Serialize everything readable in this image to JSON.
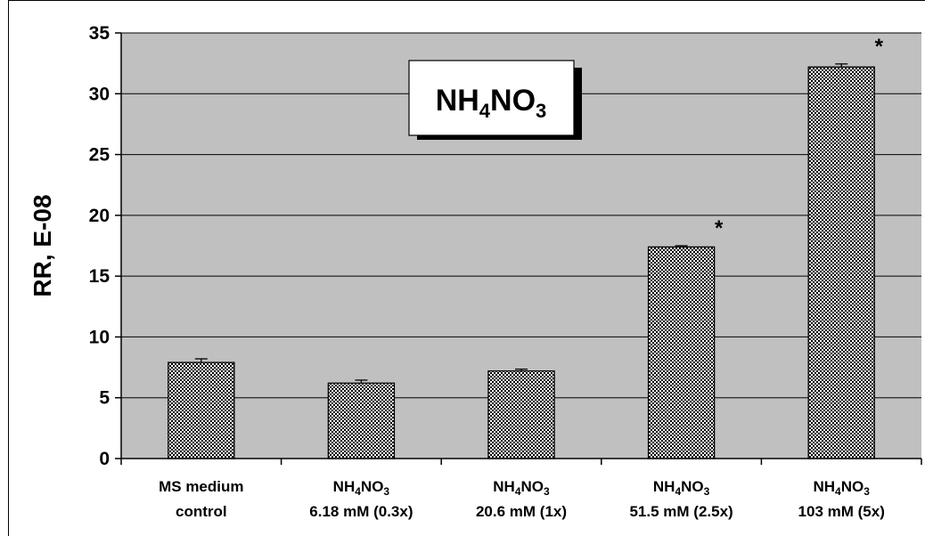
{
  "chart_data": {
    "type": "bar",
    "title": {
      "base": "NH",
      "sub1": "4",
      "mid": "NO",
      "sub2": "3"
    },
    "ylabel": "RR, E-08",
    "xlabel": "",
    "ylim": [
      0,
      35
    ],
    "yticks": [
      0,
      5,
      10,
      15,
      20,
      25,
      30,
      35
    ],
    "grid": true,
    "categories": [
      {
        "line1": {
          "text": "MS medium"
        },
        "line2": "control"
      },
      {
        "line1": {
          "base": "NH",
          "sub1": "4",
          "mid": "NO",
          "sub2": "3"
        },
        "line2": "6.18 mM (0.3x)"
      },
      {
        "line1": {
          "base": "NH",
          "sub1": "4",
          "mid": "NO",
          "sub2": "3"
        },
        "line2": "20.6 mM (1x)"
      },
      {
        "line1": {
          "base": "NH",
          "sub1": "4",
          "mid": "NO",
          "sub2": "3"
        },
        "line2": "51.5 mM (2.5x)"
      },
      {
        "line1": {
          "base": "NH",
          "sub1": "4",
          "mid": "NO",
          "sub2": "3"
        },
        "line2": "103 mM (5x)"
      }
    ],
    "values": [
      7.9,
      6.2,
      7.2,
      17.4,
      32.2
    ],
    "errors": [
      0.3,
      0.25,
      0.15,
      0.1,
      0.25
    ],
    "significance": [
      "",
      "",
      "",
      "*",
      "*"
    ],
    "colors": {
      "plot_bg": "#c0c0c0",
      "bar_fill": "#ffffff",
      "bar_pattern": "#000000"
    }
  }
}
